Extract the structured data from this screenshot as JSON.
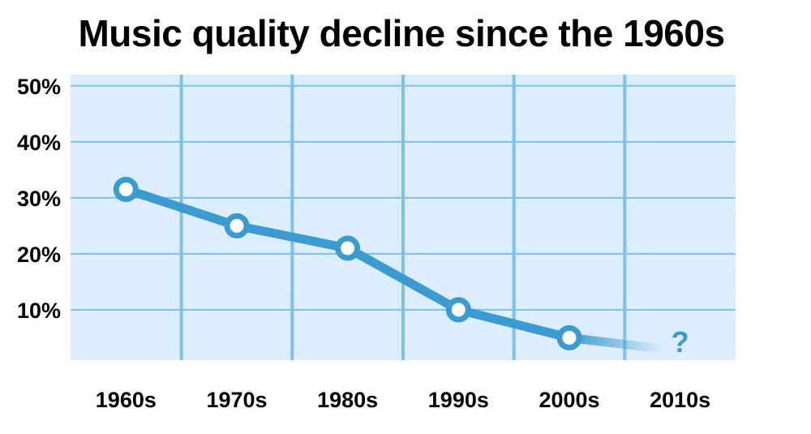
{
  "colors": {
    "plot_background": "#dcedfd",
    "gridline": "#7ec0e8",
    "series_line": "#3b9bd0",
    "marker_fill": "#ffffff",
    "text": "#000000"
  },
  "chart_data": {
    "type": "line",
    "title": "Music quality decline since the 1960s",
    "xlabel": "",
    "ylabel": "",
    "categories": [
      "1960s",
      "1970s",
      "1980s",
      "1990s",
      "2000s",
      "2010s"
    ],
    "y_ticks": [
      10,
      20,
      30,
      40,
      50
    ],
    "y_tick_labels": [
      "10%",
      "20%",
      "30%",
      "40%",
      "50%"
    ],
    "ylim": [
      1,
      52
    ],
    "grid": true,
    "legend": "none",
    "series": [
      {
        "values": [
          31.5,
          25,
          21,
          10,
          5,
          null
        ],
        "trailing_value": 3,
        "trailing_annotation": "?"
      }
    ]
  }
}
